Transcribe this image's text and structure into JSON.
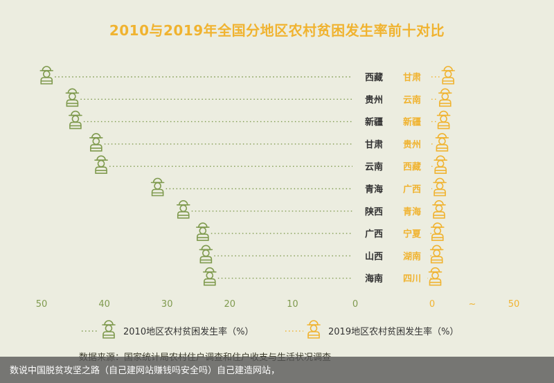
{
  "title": "2010与2019年全国分地区农村贫困发生率前十对比",
  "colors": {
    "green": "#7f9a4e",
    "orange": "#f0b330",
    "background": "#ecede0",
    "dark_text": "#333333"
  },
  "icon_name": "farmer-icon",
  "chart_data": {
    "type": "dot-plot",
    "title": "2010与2019年全国分地区农村贫困发生率前十对比",
    "left_axis": {
      "ticks": [
        50,
        40,
        30,
        20,
        10,
        0
      ],
      "range": [
        50,
        0
      ]
    },
    "right_axis": {
      "ticks": [
        "0",
        "~",
        "50"
      ]
    },
    "series": [
      {
        "name": "2010地区农村贫困发生率（%）",
        "regions": [
          "西藏",
          "贵州",
          "新疆",
          "甘肃",
          "云南",
          "青海",
          "陕西",
          "广西",
          "山西",
          "海南"
        ],
        "values": [
          49.2,
          45.1,
          44.6,
          41.3,
          40.5,
          31.5,
          27.4,
          24.3,
          23.8,
          23.2
        ]
      },
      {
        "name": "2019地区农村贫困发生率（%）",
        "regions": [
          "甘肃",
          "云南",
          "新疆",
          "贵州",
          "西藏",
          "广西",
          "青海",
          "宁夏",
          "湖南",
          "四川"
        ],
        "values": [
          2.2,
          1.8,
          1.6,
          1.4,
          1.2,
          1.1,
          1.0,
          0.8,
          0.7,
          0.5
        ]
      }
    ],
    "legend": [
      {
        "label": "2010地区农村贫困发生率（%）",
        "color": "#7f9a4e"
      },
      {
        "label": "2019地区农村贫困发生率（%）",
        "color": "#f0b330"
      }
    ],
    "legend_position": "bottom"
  },
  "source": "数据来源：国家统计局农村住户调查和住户收支与生活状况调查",
  "watermark": "数说中国脱贫攻坚之路（自己建网站赚钱吗安全吗）自己建造网站，"
}
